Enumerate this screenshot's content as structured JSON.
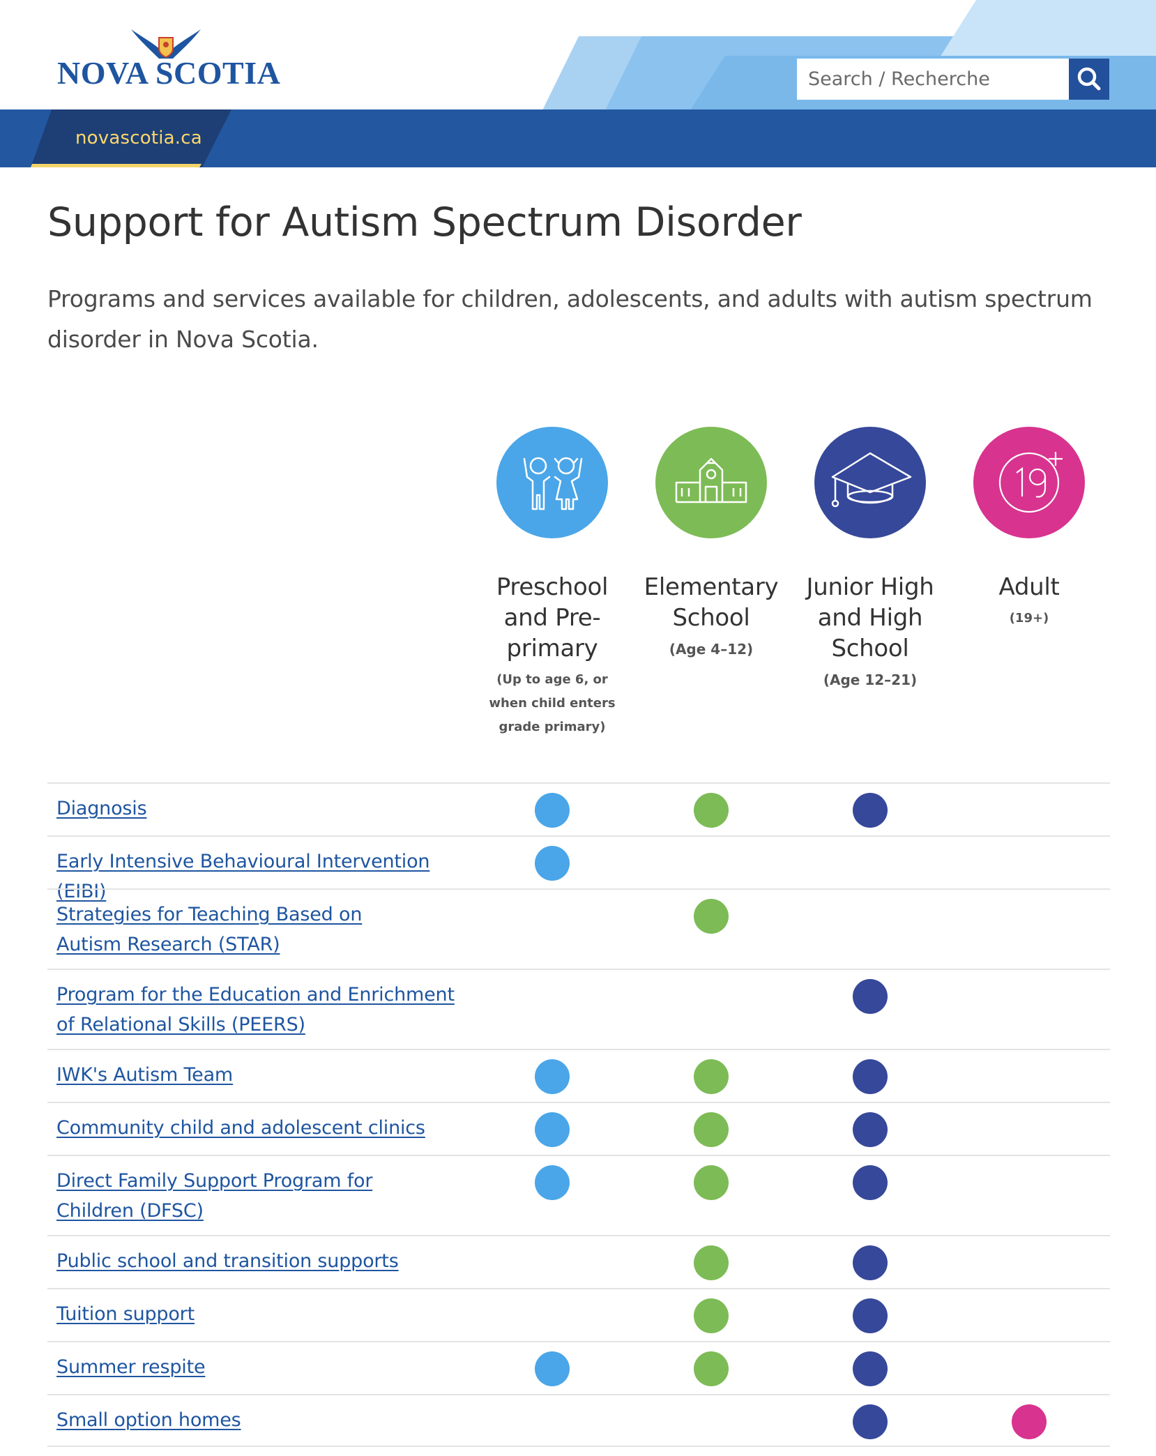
{
  "site": {
    "logo_text": "NOVA SCOTIA",
    "home_tab": "novascotia.ca",
    "search_placeholder": "Search / Recherche"
  },
  "page": {
    "title": "Support for Autism Spectrum Disorder",
    "intro": "Programs and services available for children, adolescents, and adults with autism spectrum disorder in Nova Scotia."
  },
  "colors": {
    "preschool": "#4aa6e8",
    "elementary": "#7dbb56",
    "junior_high": "#36489a",
    "adult": "#d8338f",
    "link": "#1e55a0",
    "brand_blue": "#2358a1"
  },
  "stages": [
    {
      "name": "Preschool and Pre-primary",
      "sub": "(Up to age 6, or when child enters grade primary)",
      "icon": "children-icon"
    },
    {
      "name": "Elementary School",
      "sub": "(Age 4–12)",
      "icon": "school-building-icon"
    },
    {
      "name": "Junior High and High School",
      "sub": "(Age 12–21)",
      "icon": "graduation-cap-icon"
    },
    {
      "name": "Adult",
      "sub": "(19+)",
      "icon": "nineteen-plus-icon"
    }
  ],
  "programs": [
    {
      "label": "Diagnosis",
      "stages": [
        true,
        true,
        true,
        false
      ]
    },
    {
      "label": "Early Intensive Behavioural Intervention (EIBI)",
      "stages": [
        true,
        false,
        false,
        false
      ]
    },
    {
      "label": "Strategies for Teaching Based on Autism Research (STAR)",
      "stages": [
        false,
        true,
        false,
        false
      ]
    },
    {
      "label": "Program for the Education and Enrichment of Relational Skills (PEERS)",
      "stages": [
        false,
        false,
        true,
        false
      ]
    },
    {
      "label": "IWK's Autism Team",
      "stages": [
        true,
        true,
        true,
        false
      ]
    },
    {
      "label": "Community child and adolescent clinics",
      "stages": [
        true,
        true,
        true,
        false
      ]
    },
    {
      "label": "Direct Family Support Program for Children (DFSC)",
      "stages": [
        true,
        true,
        true,
        false
      ]
    },
    {
      "label": "Public school and transition supports",
      "stages": [
        false,
        true,
        true,
        false
      ]
    },
    {
      "label": "Tuition support",
      "stages": [
        false,
        true,
        true,
        false
      ]
    },
    {
      "label": "Summer respite",
      "stages": [
        true,
        true,
        true,
        false
      ]
    },
    {
      "label": "Small option homes",
      "stages": [
        false,
        false,
        true,
        true
      ]
    }
  ]
}
